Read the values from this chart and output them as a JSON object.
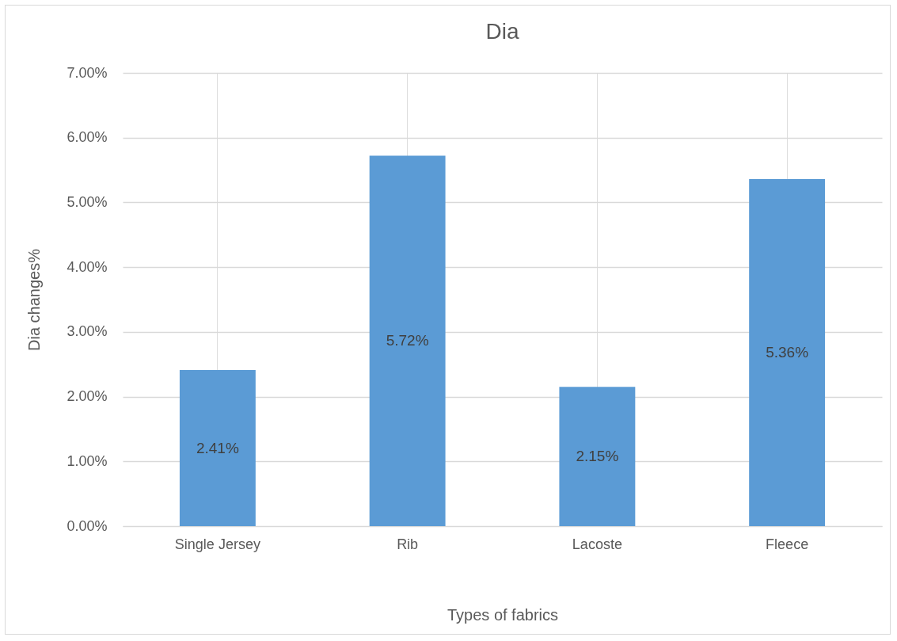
{
  "chart_data": {
    "type": "bar",
    "title": "Dia",
    "xlabel": "Types of fabrics",
    "ylabel": "Dia changes%",
    "categories": [
      "Single Jersey",
      "Rib",
      "Lacoste",
      "Fleece"
    ],
    "values": [
      2.41,
      5.72,
      2.15,
      5.36
    ],
    "value_labels": [
      "2.41%",
      "5.72%",
      "2.15%",
      "5.36%"
    ],
    "color": "#5b9bd5",
    "ylim": [
      0,
      7
    ],
    "yticks": [
      {
        "value": 0,
        "label": "0.00%"
      },
      {
        "value": 1,
        "label": "1.00%"
      },
      {
        "value": 2,
        "label": "2.00%"
      },
      {
        "value": 3,
        "label": "3.00%"
      },
      {
        "value": 4,
        "label": "4.00%"
      },
      {
        "value": 5,
        "label": "5.00%"
      },
      {
        "value": 6,
        "label": "6.00%"
      },
      {
        "value": 7,
        "label": "7.00%"
      }
    ],
    "grid": true
  }
}
